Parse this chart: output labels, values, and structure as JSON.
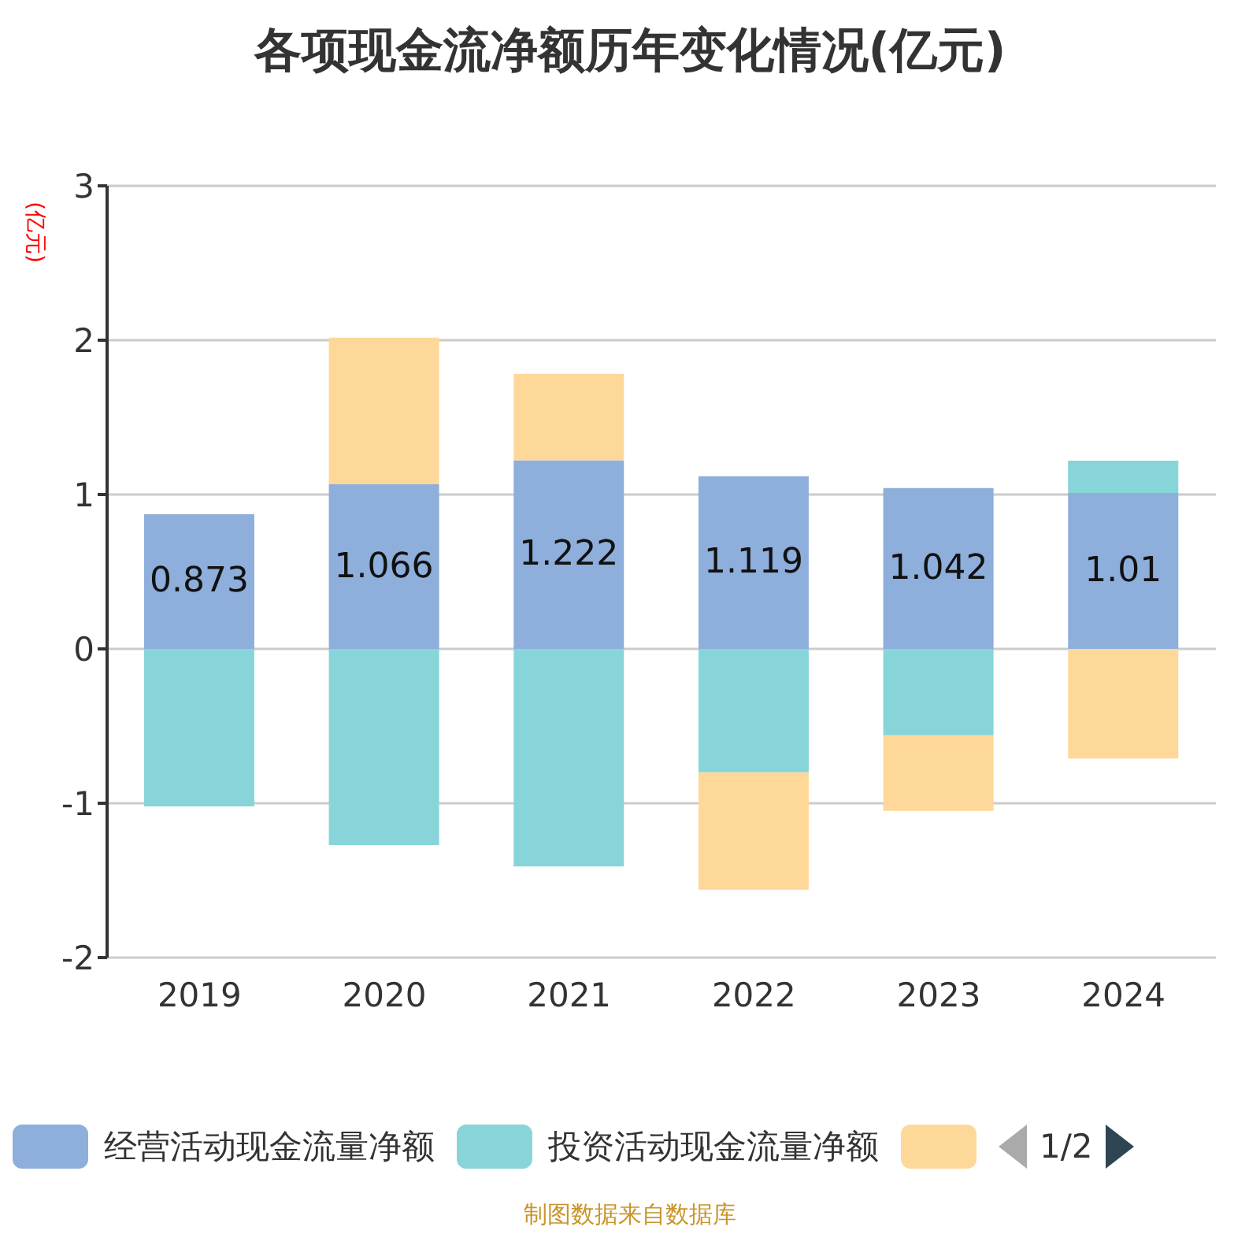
{
  "chart_data": {
    "type": "bar",
    "title": "各项现金流净额历年变化情况(亿元)",
    "ylabel": "(亿元)",
    "stacked": true,
    "categories": [
      "2019",
      "2020",
      "2021",
      "2022",
      "2023",
      "2024"
    ],
    "series": [
      {
        "name": "经营活动现金流量净额",
        "color": "#8eaedb",
        "values": [
          0.873,
          1.066,
          1.222,
          1.119,
          1.042,
          1.01
        ],
        "value_labels": [
          "0.873",
          "1.066",
          "1.222",
          "1.119",
          "1.042",
          "1.01"
        ]
      },
      {
        "name": "投资活动现金流量净额",
        "color": "#87d5d9",
        "values": [
          -1.02,
          -1.27,
          -1.41,
          -0.8,
          -0.56,
          0.21
        ]
      },
      {
        "color": "#fed899",
        "values": [
          null,
          0.95,
          0.56,
          -0.76,
          -0.49,
          -0.71
        ]
      }
    ],
    "ylim": [
      -2,
      3
    ],
    "yticks": [
      -2,
      -1,
      0,
      1,
      2,
      3
    ],
    "grid": "y",
    "legend": "bottom",
    "annotations": [
      "1/2",
      "制图数据来自数据库"
    ]
  }
}
